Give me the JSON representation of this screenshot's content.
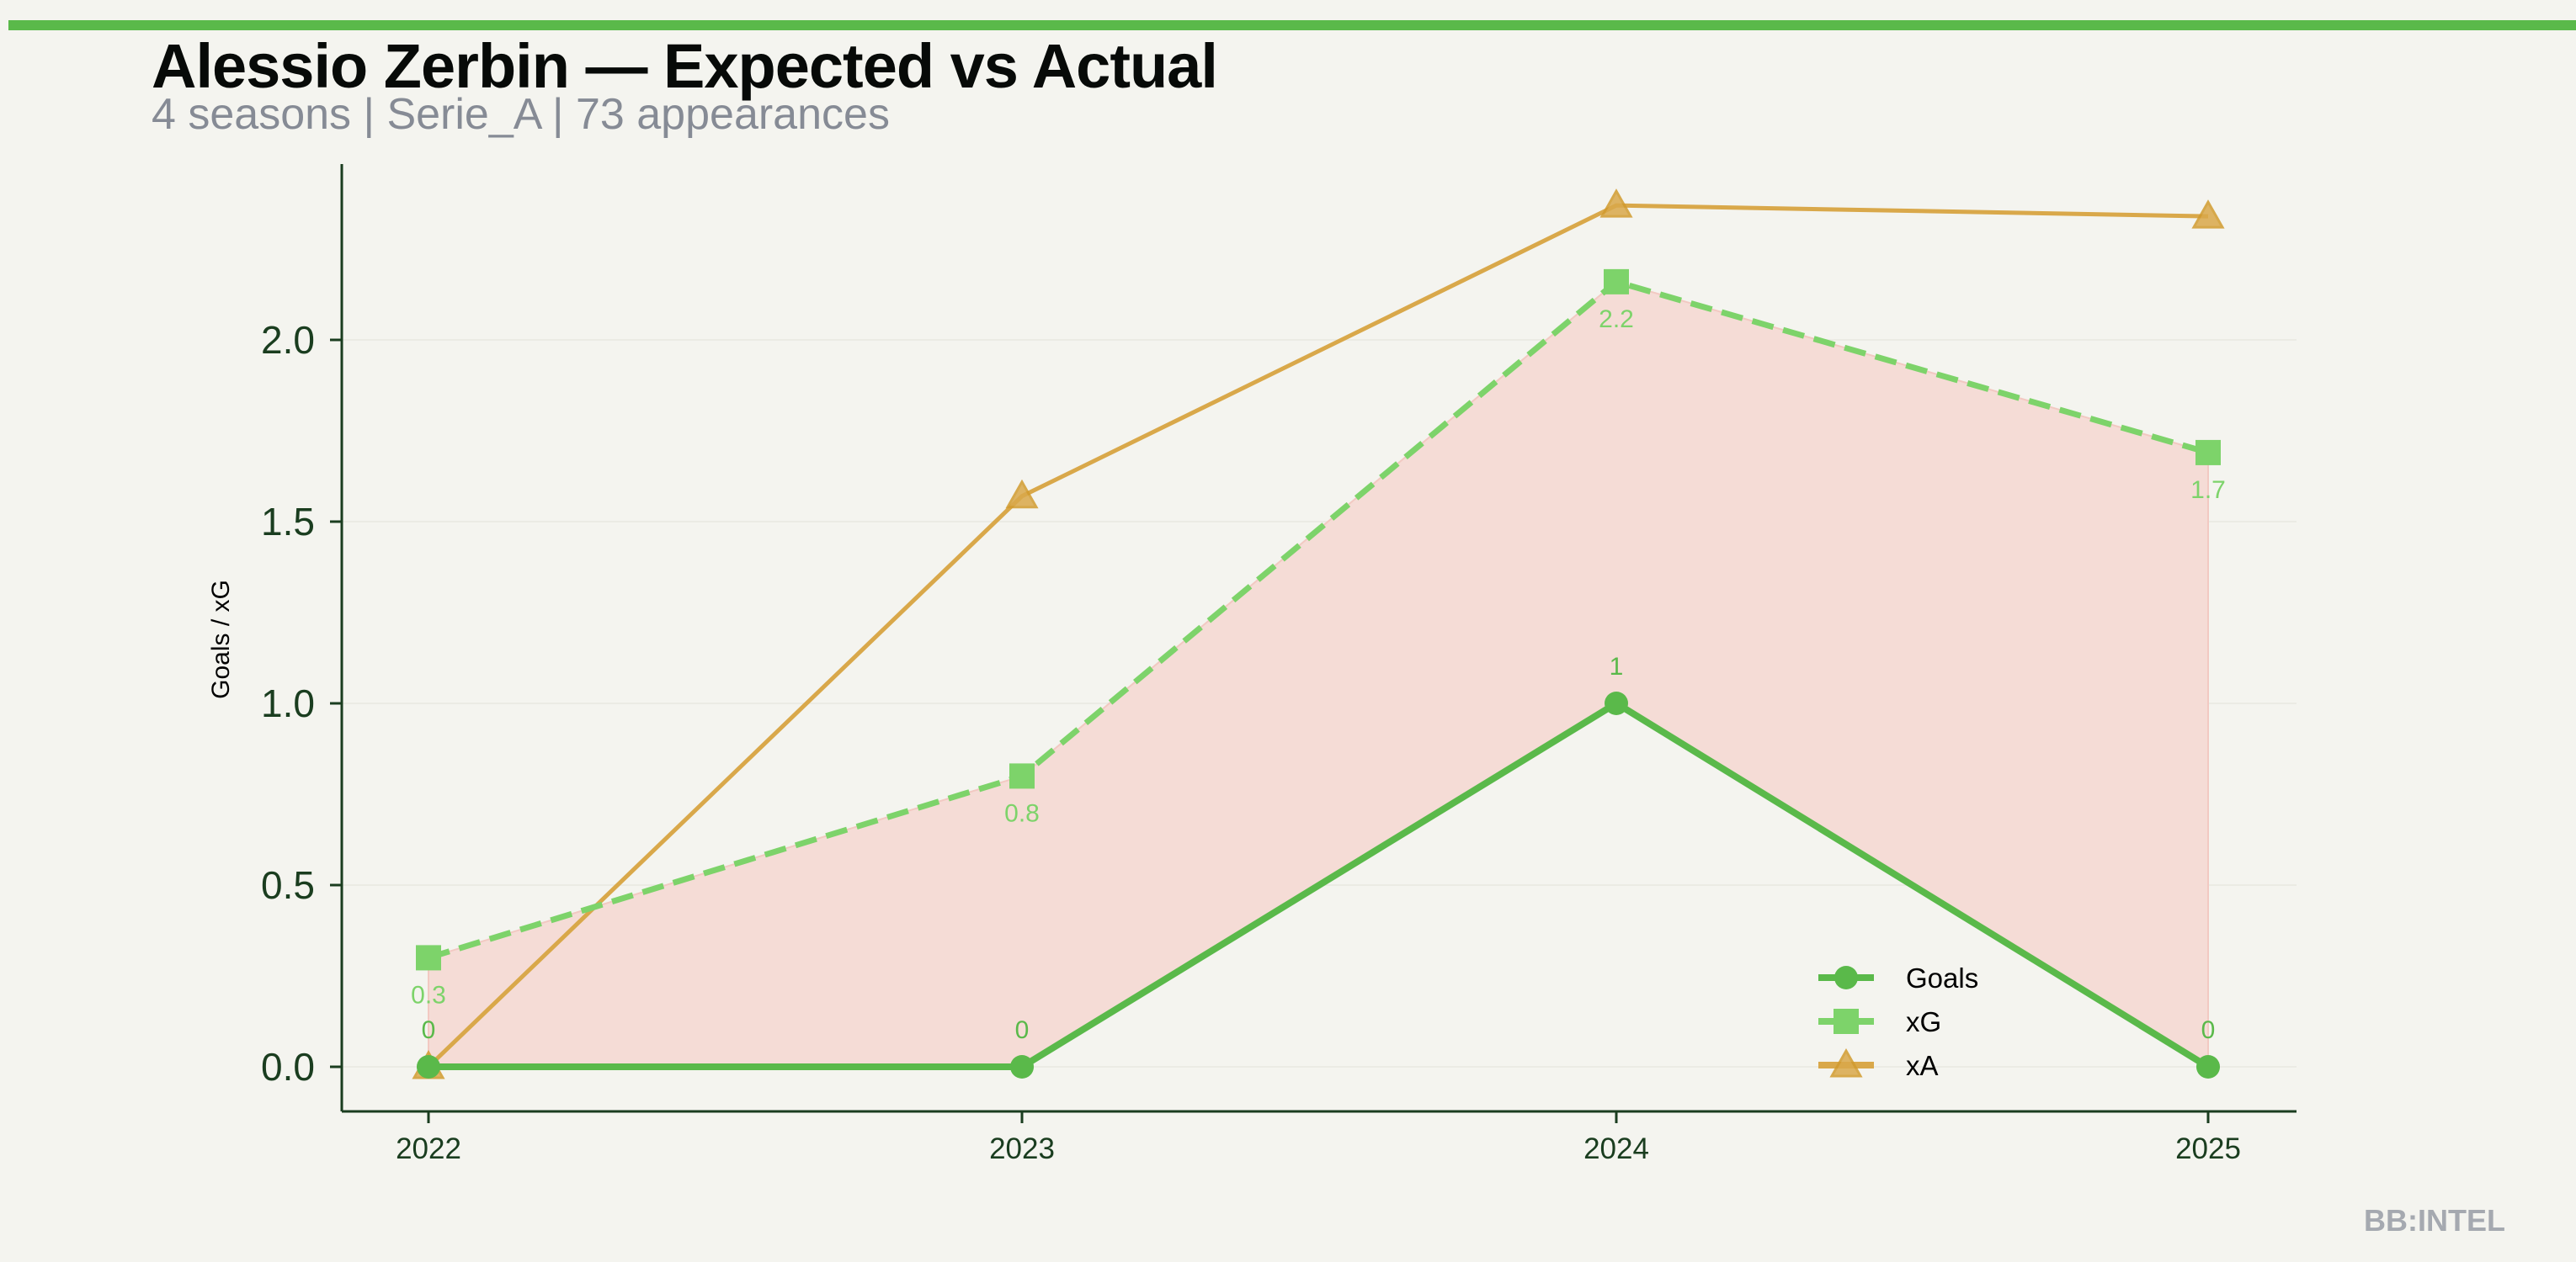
{
  "header": {
    "title": "Alessio Zerbin — Expected vs Actual",
    "subtitle": "4 seasons | Serie_A | 73 appearances"
  },
  "watermark": "BB:INTEL",
  "colors": {
    "accent": "#5ab94a",
    "goals": "#5ab94a",
    "xg": "#7dd36a",
    "xa": "#d9a84a",
    "fill": "#f5dcd6",
    "axis": "#1a3d1f"
  },
  "chart_data": {
    "type": "line",
    "title": "Alessio Zerbin — Expected vs Actual",
    "xlabel": "",
    "ylabel": "Goals / xG",
    "categories": [
      "2022",
      "2023",
      "2024",
      "2025"
    ],
    "y_ticks": [
      "0.0",
      "0.5",
      "1.0",
      "1.5",
      "2.0"
    ],
    "ylim": [
      -0.12,
      2.5
    ],
    "grid": "horizontal",
    "legend": "bottom-right",
    "series": [
      {
        "name": "Goals",
        "values": [
          0,
          0,
          1,
          0
        ],
        "labels": [
          "0",
          "0",
          "1",
          "0"
        ],
        "marker": "circle",
        "style": "solid"
      },
      {
        "name": "xG",
        "values": [
          0.3,
          0.8,
          2.16,
          1.69
        ],
        "labels": [
          "0.3",
          "0.8",
          "2.2",
          "1.7"
        ],
        "marker": "square",
        "style": "dashed"
      },
      {
        "name": "xA",
        "values": [
          0,
          1.57,
          2.37,
          2.34
        ],
        "marker": "triangle",
        "style": "solid"
      }
    ],
    "shaded_between": [
      "Goals",
      "xG"
    ]
  }
}
